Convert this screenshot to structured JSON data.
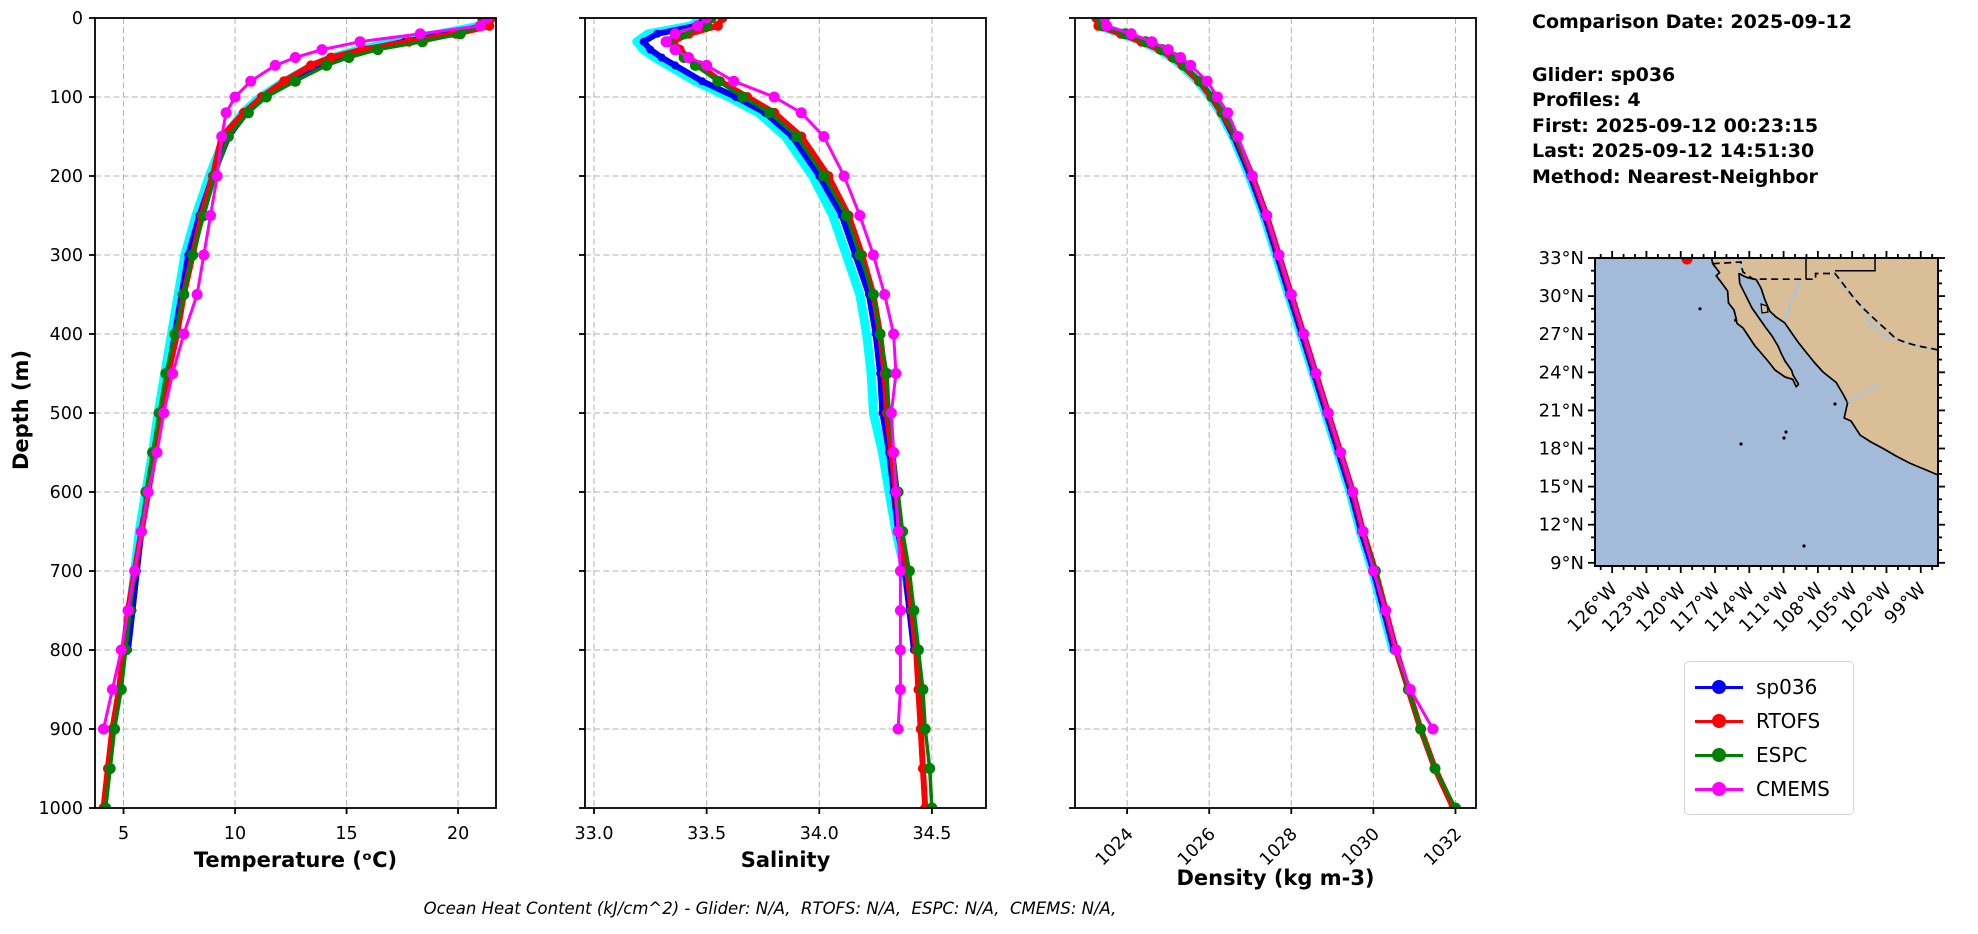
{
  "info_panel": {
    "date_line": "Comparison Date: 2025-09-12",
    "details": [
      "Glider: sp036",
      "Profiles: 4",
      "First: 2025-09-12 00:23:15",
      "Last: 2025-09-12 14:51:30",
      "Method: Nearest-Neighbor"
    ]
  },
  "footer": {
    "caption": "Ocean Heat Content (kJ/cm^2) - Glider: N/A,  RTOFS: N/A,  ESPC: N/A,  CMEMS: N/A,"
  },
  "legend": {
    "entries": [
      {
        "label": "sp036",
        "color": "#0000ff"
      },
      {
        "label": "RTOFS",
        "color": "#ff0000"
      },
      {
        "label": "ESPC",
        "color": "#008000"
      },
      {
        "label": "CMEMS",
        "color": "#ff00ff"
      }
    ]
  },
  "map": {
    "lat_labels": [
      "33°N",
      "30°N",
      "27°N",
      "24°N",
      "21°N",
      "18°N",
      "15°N",
      "12°N",
      "9°N"
    ],
    "lon_labels": [
      "126°W",
      "123°W",
      "120°W",
      "117°W",
      "114°W",
      "111°W",
      "108°W",
      "105°W",
      "102°W",
      "99°W"
    ],
    "colors": {
      "ocean": "#a3bad8",
      "land": "#d9be97",
      "river": "#9ec8e8",
      "coast": "#000000"
    },
    "glider_marker": {
      "color": "#ff0000",
      "lon_label": "119.5°W",
      "lat_label": "33°N"
    }
  },
  "chart_data": {
    "type": "line",
    "ylabel": "Depth (m)",
    "ylim": [
      0,
      1000
    ],
    "yticks": [
      0,
      100,
      200,
      300,
      400,
      500,
      600,
      700,
      800,
      900,
      1000
    ],
    "ytick_labels": [
      "0",
      "100",
      "200",
      "300",
      "400",
      "500",
      "600",
      "700",
      "800",
      "900",
      "1000"
    ],
    "grid": true,
    "depths_m": [
      0,
      10,
      20,
      30,
      40,
      50,
      60,
      80,
      100,
      120,
      150,
      200,
      250,
      300,
      350,
      400,
      450,
      500,
      550,
      600,
      650,
      700,
      750,
      800,
      850,
      900,
      950,
      1000
    ],
    "panels": [
      {
        "series_key": "temperature",
        "xlabel": "Temperature (ᵒC)",
        "xlim": [
          3.72,
          21.7
        ],
        "xticks": [
          5,
          10,
          15,
          20
        ],
        "xtick_labels": [
          "5",
          "10",
          "15",
          "20"
        ],
        "rotate_xticks": false
      },
      {
        "series_key": "salinity",
        "xlabel": "Salinity",
        "xlim": [
          32.96,
          34.74
        ],
        "xticks": [
          33.0,
          33.5,
          34.0,
          34.5
        ],
        "xtick_labels": [
          "33.0",
          "33.5",
          "34.0",
          "34.5"
        ],
        "rotate_xticks": false
      },
      {
        "series_key": "density",
        "xlabel": "Density (kg m-3)",
        "xlim": [
          1022.73,
          1032.5
        ],
        "xticks": [
          1024,
          1026,
          1028,
          1030,
          1032
        ],
        "xtick_labels": [
          "1024",
          "1026",
          "1028",
          "1030",
          "1032"
        ],
        "rotate_xticks": true
      }
    ],
    "series": [
      {
        "name": "glider-raw",
        "color": "#00ffff",
        "line_width": 9,
        "marker_r": 0,
        "temperature": [
          21.2,
          21.0,
          19.2,
          17.2,
          15.6,
          14.4,
          13.55,
          12.25,
          11.15,
          10.35,
          9.55,
          8.85,
          8.25,
          7.75,
          7.45,
          7.15,
          6.85,
          6.55,
          6.3,
          6.0,
          5.7,
          5.5,
          5.3,
          5.1,
          null,
          null,
          null,
          null
        ],
        "salinity": [
          33.48,
          33.43,
          33.24,
          33.19,
          33.22,
          33.27,
          33.33,
          33.45,
          33.6,
          33.73,
          33.85,
          33.97,
          34.06,
          34.12,
          34.18,
          34.21,
          34.23,
          34.24,
          34.28,
          34.31,
          34.34,
          34.38,
          34.41,
          34.43,
          null,
          null,
          null,
          null
        ],
        "density": [
          1023.28,
          1023.33,
          1023.88,
          1024.38,
          1024.78,
          1025.08,
          1025.33,
          1025.73,
          1026.03,
          1026.28,
          1026.58,
          1026.98,
          1027.33,
          1027.63,
          1027.93,
          1028.23,
          1028.53,
          1028.83,
          1029.13,
          1029.43,
          1029.68,
          1029.98,
          1030.23,
          1030.48,
          null,
          null,
          null,
          null
        ]
      },
      {
        "name": "sp036",
        "color": "#0000ff",
        "line_width": 6,
        "marker_r": 4,
        "temperature": [
          21.2,
          21.1,
          19.6,
          17.6,
          15.9,
          14.6,
          13.7,
          12.4,
          11.3,
          10.5,
          9.7,
          9.0,
          8.4,
          7.9,
          7.6,
          7.3,
          7.0,
          6.7,
          6.4,
          6.1,
          5.8,
          5.6,
          5.4,
          5.2,
          null,
          null,
          null,
          null
        ],
        "salinity": [
          33.5,
          33.45,
          33.28,
          33.22,
          33.25,
          33.3,
          33.36,
          33.48,
          33.63,
          33.76,
          33.88,
          34.0,
          34.1,
          34.16,
          34.22,
          34.25,
          34.27,
          34.28,
          34.31,
          34.33,
          34.35,
          34.38,
          34.4,
          34.42,
          null,
          null,
          null,
          null
        ],
        "density": [
          1023.3,
          1023.35,
          1023.9,
          1024.4,
          1024.8,
          1025.1,
          1025.35,
          1025.75,
          1026.05,
          1026.3,
          1026.6,
          1027.0,
          1027.35,
          1027.65,
          1027.95,
          1028.25,
          1028.55,
          1028.85,
          1029.15,
          1029.45,
          1029.7,
          1030.0,
          1030.25,
          1030.5,
          null,
          null,
          null,
          null
        ]
      },
      {
        "name": "RTOFS",
        "color": "#ff0000",
        "line_width": 6,
        "marker_r": 5,
        "temperature": [
          21.5,
          21.4,
          19.9,
          17.8,
          15.7,
          14.3,
          13.4,
          12.2,
          11.2,
          10.4,
          9.4,
          9.0,
          8.5,
          8.1,
          7.7,
          7.4,
          7.0,
          6.7,
          6.4,
          6.1,
          5.8,
          5.5,
          5.2,
          5.0,
          4.8,
          4.5,
          4.3,
          4.1
        ],
        "salinity": [
          33.57,
          33.55,
          33.42,
          33.35,
          33.38,
          33.42,
          33.47,
          33.56,
          33.68,
          33.8,
          33.92,
          34.04,
          34.13,
          34.19,
          34.24,
          34.27,
          34.29,
          34.3,
          34.32,
          34.34,
          34.36,
          34.39,
          34.41,
          34.43,
          34.44,
          34.45,
          34.46,
          34.47
        ],
        "density": [
          1023.25,
          1023.3,
          1023.85,
          1024.35,
          1024.8,
          1025.1,
          1025.35,
          1025.75,
          1026.05,
          1026.3,
          1026.65,
          1027.05,
          1027.4,
          1027.7,
          1028.0,
          1028.3,
          1028.6,
          1028.9,
          1029.2,
          1029.5,
          1029.75,
          1030.05,
          1030.3,
          1030.55,
          1030.85,
          1031.15,
          1031.5,
          1031.95
        ]
      },
      {
        "name": "ESPC",
        "color": "#008000",
        "line_width": 3.5,
        "marker_r": 5.5,
        "temperature": [
          21.1,
          21.0,
          20.1,
          18.4,
          16.4,
          15.1,
          14.1,
          12.7,
          11.4,
          10.6,
          9.7,
          9.1,
          8.6,
          8.1,
          7.7,
          7.3,
          6.9,
          6.6,
          6.3,
          6.0,
          5.8,
          5.5,
          5.3,
          5.1,
          4.9,
          4.6,
          4.4,
          4.2
        ],
        "salinity": [
          33.52,
          33.5,
          33.4,
          33.33,
          33.36,
          33.4,
          33.45,
          33.55,
          33.66,
          33.78,
          33.9,
          34.02,
          34.12,
          34.18,
          34.24,
          34.27,
          34.3,
          34.31,
          34.33,
          34.35,
          34.37,
          34.4,
          34.42,
          34.44,
          34.46,
          34.47,
          34.49,
          34.5
        ],
        "density": [
          1023.35,
          1023.4,
          1023.95,
          1024.45,
          1024.85,
          1025.15,
          1025.4,
          1025.8,
          1026.1,
          1026.35,
          1026.65,
          1027.05,
          1027.4,
          1027.7,
          1028.0,
          1028.3,
          1028.6,
          1028.9,
          1029.2,
          1029.5,
          1029.75,
          1030.05,
          1030.3,
          1030.55,
          1030.85,
          1031.15,
          1031.5,
          1032.0
        ]
      },
      {
        "name": "CMEMS",
        "color": "#ff00ff",
        "line_width": 3,
        "marker_r": 5.5,
        "temperature": [
          21.3,
          21.0,
          18.3,
          15.6,
          13.9,
          12.7,
          11.8,
          10.7,
          10.0,
          9.6,
          9.4,
          9.2,
          8.9,
          8.6,
          8.3,
          7.7,
          7.2,
          6.8,
          6.5,
          6.1,
          5.8,
          5.5,
          5.2,
          4.9,
          4.5,
          4.1,
          null,
          null
        ],
        "salinity": [
          33.5,
          33.46,
          33.36,
          33.32,
          33.36,
          33.42,
          33.5,
          33.62,
          33.8,
          33.92,
          34.02,
          34.11,
          34.18,
          34.24,
          34.29,
          34.33,
          34.34,
          34.32,
          34.33,
          34.34,
          34.35,
          34.36,
          34.36,
          34.36,
          34.36,
          34.35,
          null,
          null
        ],
        "density": [
          1023.45,
          1023.5,
          1024.1,
          1024.6,
          1025.0,
          1025.3,
          1025.55,
          1025.95,
          1026.2,
          1026.45,
          1026.7,
          1027.05,
          1027.4,
          1027.7,
          1028.0,
          1028.3,
          1028.6,
          1028.9,
          1029.2,
          1029.5,
          1029.75,
          1030.0,
          1030.3,
          1030.55,
          1030.9,
          1031.45,
          null,
          null
        ]
      }
    ]
  }
}
